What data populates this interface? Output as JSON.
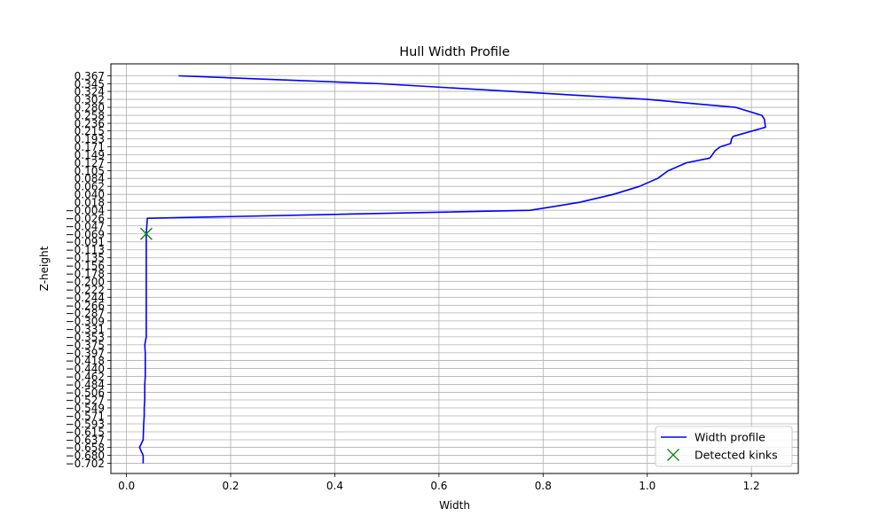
{
  "chart_data": {
    "type": "line",
    "title": "Hull Width Profile",
    "xlabel": "Width",
    "ylabel": "Z-height",
    "xlim": [
      -0.03,
      1.29
    ],
    "ylim": [
      -0.73,
      0.4
    ],
    "grid": true,
    "legend_position": "bottom-right",
    "x_ticks": [
      "0.0",
      "0.2",
      "0.4",
      "0.6",
      "0.8",
      "1.0",
      "1.2"
    ],
    "y_ticks": [
      "0.367",
      "0.345",
      "0.324",
      "0.302",
      "0.280",
      "0.258",
      "0.236",
      "0.215",
      "0.193",
      "0.171",
      "0.149",
      "0.127",
      "0.105",
      "0.084",
      "0.062",
      "0.040",
      "0.018",
      "−0.004",
      "−0.026",
      "−0.047",
      "−0.069",
      "−0.091",
      "−0.113",
      "−0.135",
      "−0.156",
      "−0.178",
      "−0.200",
      "−0.222",
      "−0.244",
      "−0.266",
      "−0.287",
      "−0.309",
      "−0.331",
      "−0.353",
      "−0.375",
      "−0.397",
      "−0.418",
      "−0.440",
      "−0.462",
      "−0.484",
      "−0.506",
      "−0.527",
      "−0.549",
      "−0.571",
      "−0.593",
      "−0.615",
      "−0.637",
      "−0.658",
      "−0.680",
      "−0.702"
    ],
    "series": [
      {
        "name": "Width profile",
        "type": "line",
        "color": "#0000ff",
        "x": [
          0.1,
          0.49,
          1.0,
          1.17,
          1.22,
          1.225,
          1.227,
          1.165,
          1.162,
          1.16,
          1.14,
          1.13,
          1.125,
          1.12,
          1.075,
          1.04,
          1.02,
          0.985,
          0.935,
          0.87,
          0.775,
          0.04,
          0.038,
          0.038,
          0.038,
          0.038,
          0.038,
          0.038,
          0.038,
          0.038,
          0.038,
          0.038,
          0.038,
          0.038,
          0.038,
          0.038,
          0.035,
          0.036,
          0.036,
          0.036,
          0.036,
          0.035,
          0.035,
          0.035,
          0.034,
          0.034,
          0.033,
          0.032,
          0.025,
          0.032,
          0.032
        ],
        "y": [
          0.367,
          0.345,
          0.302,
          0.28,
          0.258,
          0.247,
          0.225,
          0.2,
          0.193,
          0.18,
          0.171,
          0.16,
          0.149,
          0.14,
          0.127,
          0.105,
          0.084,
          0.062,
          0.04,
          0.018,
          -0.004,
          -0.026,
          -0.069,
          -0.091,
          -0.113,
          -0.135,
          -0.156,
          -0.178,
          -0.2,
          -0.222,
          -0.244,
          -0.266,
          -0.287,
          -0.309,
          -0.331,
          -0.353,
          -0.375,
          -0.397,
          -0.418,
          -0.44,
          -0.462,
          -0.484,
          -0.506,
          -0.527,
          -0.549,
          -0.571,
          -0.593,
          -0.637,
          -0.658,
          -0.68,
          -0.702
        ]
      },
      {
        "name": "Detected kinks",
        "type": "scatter",
        "marker": "x",
        "color": "#008000",
        "x": [
          0.038
        ],
        "y": [
          -0.069
        ]
      }
    ]
  }
}
